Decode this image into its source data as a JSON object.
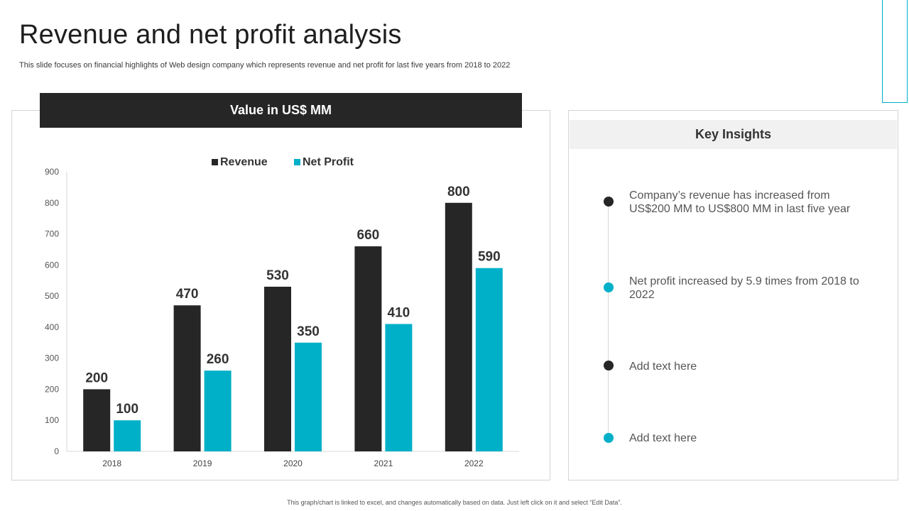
{
  "slide": {
    "title": "Revenue and net profit analysis",
    "subtitle": "This slide focuses on financial highlights of Web design company which represents revenue and net profit for last five years from 2018 to 2022",
    "footer": "This graph/chart is linked to excel, and changes automatically based on data. Just left click on it and select “Edit Data”."
  },
  "chart_panel": {
    "header": "Value in US$ MM"
  },
  "chart_data": {
    "type": "bar",
    "title": "Value in US$ MM",
    "categories": [
      "2018",
      "2019",
      "2020",
      "2021",
      "2022"
    ],
    "series": [
      {
        "name": "Revenue",
        "color": "#262626",
        "values": [
          200,
          470,
          530,
          660,
          800
        ]
      },
      {
        "name": "Net Profit",
        "color": "#00b0c8",
        "values": [
          100,
          260,
          350,
          410,
          590
        ]
      }
    ],
    "ylim": [
      0,
      900
    ],
    "yticks": [
      0,
      100,
      200,
      300,
      400,
      500,
      600,
      700,
      800,
      900
    ],
    "xlabel": "",
    "ylabel": "",
    "legend": "top-center",
    "grid": false
  },
  "insights": {
    "header": "Key Insights",
    "items": [
      {
        "text": "Company’s revenue has increased from US$200 MM to US$800 MM in last five year",
        "color": "#262626"
      },
      {
        "text": "Net profit increased by 5.9 times from 2018 to 2022",
        "color": "#00b0c8"
      },
      {
        "text": "Add text here",
        "color": "#262626"
      },
      {
        "text": "Add text here",
        "color": "#00b0c8"
      }
    ]
  },
  "colors": {
    "accent": "#00b0c8",
    "dark": "#262626"
  }
}
